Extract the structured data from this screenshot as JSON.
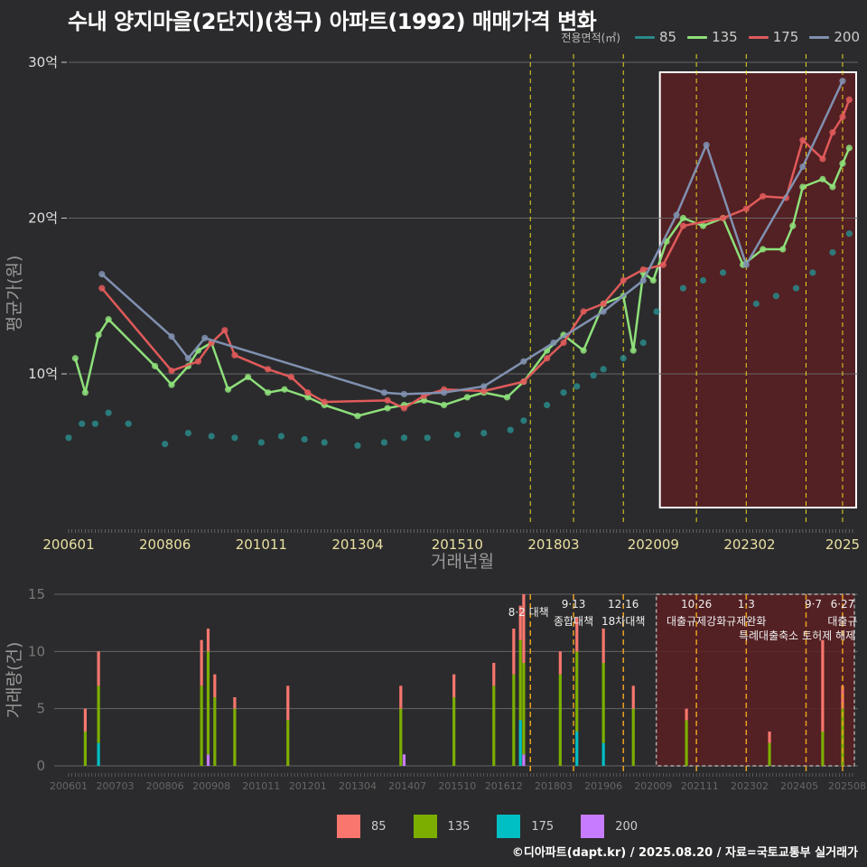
{
  "title": "수내 양지마을(2단지)(청구) 아파트(1992) 매매가격 변화",
  "footer": "©디아파트(dapt.kr) / 2025.08.20 / 자료=국토교통부 실거래가",
  "colors": {
    "background": "#2b2b2d",
    "s85": "#2a8a8a",
    "s135": "#8ee07a",
    "s175": "#e05a5a",
    "s200": "#8090b0",
    "b85": "#f8766d",
    "b135": "#7cae00",
    "b175": "#00bfc4",
    "b200": "#c77cff",
    "highlight": "#5a1e22",
    "policy": "#e8d820",
    "policy_lower": "#e8a020"
  },
  "legend_top": {
    "title": "전용면적(㎡)",
    "items": [
      "85",
      "135",
      "175",
      "200"
    ]
  },
  "legend_bottom": {
    "items": [
      "85",
      "135",
      "175",
      "200"
    ]
  },
  "chart_data": [
    {
      "type": "line",
      "title": "수내 양지마을(2단지)(청구) 아파트(1992) 매매가격 변화",
      "xlabel": "거래년월",
      "ylabel": "평균가(원)",
      "x_ticks": [
        "200601",
        "200806",
        "201011",
        "201304",
        "201510",
        "201803",
        "202009",
        "202302",
        "2025"
      ],
      "y_ticks": [
        "10억",
        "20억",
        "30억"
      ],
      "ylim": [
        0,
        30
      ],
      "y_unit": "억",
      "highlight_range": [
        "2020-11",
        "2025-09"
      ],
      "policy_lines": [
        "2017-08",
        "2018-09",
        "2019-12",
        "2021-10",
        "2023-01",
        "2024-07",
        "2025-06"
      ],
      "series": [
        {
          "name": "85",
          "points": [
            [
              "2006-01",
              5.9
            ],
            [
              "2006-05",
              6.8
            ],
            [
              "2006-09",
              6.8
            ],
            [
              "2007-01",
              7.5
            ],
            [
              "2007-07",
              6.8
            ],
            [
              "2008-06",
              5.5
            ],
            [
              "2009-01",
              6.2
            ],
            [
              "2009-08",
              6.0
            ],
            [
              "2010-03",
              5.9
            ],
            [
              "2010-11",
              5.6
            ],
            [
              "2011-05",
              6.0
            ],
            [
              "2011-12",
              5.8
            ],
            [
              "2012-06",
              5.6
            ],
            [
              "2013-04",
              5.4
            ],
            [
              "2013-12",
              5.6
            ],
            [
              "2014-06",
              5.9
            ],
            [
              "2015-01",
              5.9
            ],
            [
              "2015-10",
              6.1
            ],
            [
              "2016-06",
              6.2
            ],
            [
              "2017-02",
              6.4
            ],
            [
              "2017-06",
              7.0
            ],
            [
              "2018-01",
              8.0
            ],
            [
              "2018-06",
              8.8
            ],
            [
              "2018-10",
              9.2
            ],
            [
              "2019-03",
              9.9
            ],
            [
              "2019-06",
              10.3
            ],
            [
              "2019-12",
              11.0
            ],
            [
              "2020-06",
              12.0
            ],
            [
              "2020-10",
              14.0
            ],
            [
              "2021-06",
              15.5
            ],
            [
              "2021-12",
              16.0
            ],
            [
              "2022-06",
              16.5
            ],
            [
              "2023-04",
              14.5
            ],
            [
              "2023-10",
              15.0
            ],
            [
              "2024-04",
              15.5
            ],
            [
              "2024-09",
              16.5
            ],
            [
              "2025-03",
              17.8
            ],
            [
              "2025-08",
              19.0
            ]
          ]
        },
        {
          "name": "135",
          "points": [
            [
              "2006-03",
              11.0
            ],
            [
              "2006-06",
              8.8
            ],
            [
              "2006-10",
              12.5
            ],
            [
              "2007-01",
              13.5
            ],
            [
              "2008-03",
              10.5
            ],
            [
              "2008-08",
              9.3
            ],
            [
              "2009-01",
              10.5
            ],
            [
              "2009-04",
              11.5
            ],
            [
              "2009-08",
              12.0
            ],
            [
              "2010-01",
              9.0
            ],
            [
              "2010-07",
              9.8
            ],
            [
              "2011-01",
              8.8
            ],
            [
              "2011-06",
              9.0
            ],
            [
              "2012-01",
              8.5
            ],
            [
              "2012-06",
              8.0
            ],
            [
              "2013-04",
              7.3
            ],
            [
              "2014-01",
              7.8
            ],
            [
              "2014-06",
              8.0
            ],
            [
              "2014-12",
              8.3
            ],
            [
              "2015-06",
              8.0
            ],
            [
              "2016-01",
              8.5
            ],
            [
              "2016-06",
              8.8
            ],
            [
              "2017-01",
              8.5
            ],
            [
              "2017-06",
              9.5
            ],
            [
              "2018-01",
              11.5
            ],
            [
              "2018-06",
              12.5
            ],
            [
              "2018-12",
              11.5
            ],
            [
              "2019-06",
              14.5
            ],
            [
              "2019-12",
              15.0
            ],
            [
              "2020-03",
              11.5
            ],
            [
              "2020-06",
              16.5
            ],
            [
              "2020-09",
              16.0
            ],
            [
              "2021-01",
              18.5
            ],
            [
              "2021-06",
              20.0
            ],
            [
              "2021-12",
              19.5
            ],
            [
              "2022-06",
              20.0
            ],
            [
              "2022-12",
              17.0
            ],
            [
              "2023-06",
              18.0
            ],
            [
              "2023-12",
              18.0
            ],
            [
              "2024-03",
              19.5
            ],
            [
              "2024-06",
              22.0
            ],
            [
              "2024-12",
              22.5
            ],
            [
              "2025-03",
              22.0
            ],
            [
              "2025-06",
              23.5
            ],
            [
              "2025-08",
              24.5
            ]
          ]
        },
        {
          "name": "175",
          "points": [
            [
              "2006-11",
              15.5
            ],
            [
              "2008-08",
              10.2
            ],
            [
              "2009-04",
              10.8
            ],
            [
              "2009-08",
              12.0
            ],
            [
              "2009-12",
              12.8
            ],
            [
              "2010-03",
              11.2
            ],
            [
              "2011-01",
              10.3
            ],
            [
              "2011-08",
              9.8
            ],
            [
              "2012-01",
              8.8
            ],
            [
              "2012-06",
              8.2
            ],
            [
              "2014-01",
              8.3
            ],
            [
              "2014-06",
              7.8
            ],
            [
              "2014-12",
              8.6
            ],
            [
              "2015-06",
              9.0
            ],
            [
              "2016-06",
              8.9
            ],
            [
              "2017-06",
              9.5
            ],
            [
              "2018-01",
              11.0
            ],
            [
              "2018-06",
              12.0
            ],
            [
              "2018-12",
              14.0
            ],
            [
              "2019-06",
              14.5
            ],
            [
              "2019-12",
              16.0
            ],
            [
              "2020-06",
              16.7
            ],
            [
              "2020-12",
              17.0
            ],
            [
              "2021-06",
              19.5
            ],
            [
              "2022-06",
              20.0
            ],
            [
              "2023-01",
              20.6
            ],
            [
              "2023-06",
              21.4
            ],
            [
              "2024-01",
              21.3
            ],
            [
              "2024-06",
              25.0
            ],
            [
              "2024-12",
              23.8
            ],
            [
              "2025-03",
              25.5
            ],
            [
              "2025-06",
              26.5
            ],
            [
              "2025-08",
              27.6
            ]
          ]
        },
        {
          "name": "200",
          "points": [
            [
              "2006-11",
              16.4
            ],
            [
              "2008-08",
              12.4
            ],
            [
              "2009-01",
              11.0
            ],
            [
              "2009-06",
              12.3
            ],
            [
              "2013-12",
              8.8
            ],
            [
              "2014-06",
              8.7
            ],
            [
              "2015-06",
              8.8
            ],
            [
              "2016-06",
              9.2
            ],
            [
              "2017-06",
              10.8
            ],
            [
              "2018-03",
              12.0
            ],
            [
              "2019-06",
              14.0
            ],
            [
              "2020-06",
              16.0
            ],
            [
              "2021-04",
              20.2
            ],
            [
              "2022-01",
              24.7
            ],
            [
              "2023-01",
              17.0
            ],
            [
              "2024-06",
              23.3
            ],
            [
              "2025-06",
              28.8
            ]
          ]
        }
      ]
    },
    {
      "type": "bar",
      "xlabel": "",
      "ylabel": "거래량(건)",
      "y_ticks": [
        "0",
        "5",
        "10",
        "15"
      ],
      "ylim": [
        0,
        15
      ],
      "x_ticks": [
        "200601",
        "200703",
        "200806",
        "200908",
        "201011",
        "201201",
        "201304",
        "201407",
        "201510",
        "201612",
        "201803",
        "201906",
        "202009",
        "202111",
        "202302",
        "202405",
        "202508"
      ],
      "stacked": true,
      "series": [
        {
          "name": "85",
          "values_by_month": {
            "2006-06": 5,
            "2006-10": 10,
            "2009-05": 11,
            "2009-07": 12,
            "2009-09": 8,
            "2010-03": 6,
            "2011-07": 7,
            "2014-05": 7,
            "2015-09": 8,
            "2016-09": 9,
            "2017-03": 12,
            "2017-05": 14,
            "2017-06": 15,
            "2018-05": 10,
            "2018-10": 13,
            "2019-06": 12,
            "2020-03": 7,
            "2021-07": 5,
            "2023-08": 3,
            "2024-12": 11,
            "2025-06": 7
          }
        },
        {
          "name": "135",
          "values_by_month": {
            "2006-06": 3,
            "2006-10": 7,
            "2009-05": 7,
            "2009-07": 10,
            "2009-09": 6,
            "2010-03": 5,
            "2011-07": 4,
            "2014-05": 5,
            "2015-09": 6,
            "2016-09": 7,
            "2017-03": 8,
            "2017-05": 11,
            "2017-06": 9,
            "2018-05": 8,
            "2018-10": 10,
            "2019-06": 9,
            "2020-03": 5,
            "2021-07": 4,
            "2023-08": 2,
            "2024-12": 3,
            "2025-06": 5
          }
        },
        {
          "name": "175",
          "values_by_month": {
            "2006-10": 2,
            "2009-07": 1,
            "2017-05": 4,
            "2018-10": 3,
            "2019-06": 2
          }
        },
        {
          "name": "200",
          "values_by_month": {
            "2009-07": 1,
            "2014-06": 1,
            "2017-06": 1
          }
        }
      ],
      "annotations": [
        {
          "date": "8·2 대책",
          "label": "8·2 대책"
        },
        {
          "date": "9·13",
          "label": "종합대책"
        },
        {
          "date": "12·16",
          "label": "18차대책"
        },
        {
          "date": "10·26",
          "label": "대출규제강화"
        },
        {
          "date": "1·3",
          "label": "규제완화"
        },
        {
          "date": "9·7",
          "label": "특례대출축소 토허제 해제"
        },
        {
          "date": "6·27",
          "label": "대출규"
        }
      ]
    }
  ]
}
